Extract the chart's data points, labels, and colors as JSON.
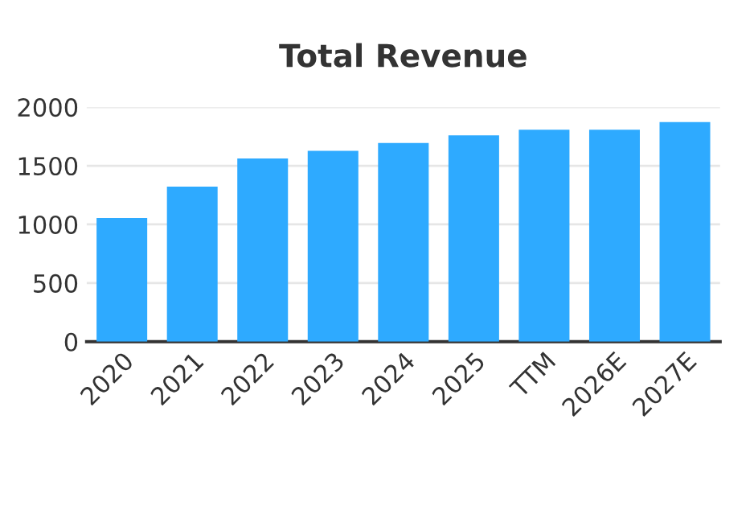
{
  "chart_data": {
    "type": "bar",
    "title": "Total Revenue",
    "categories": [
      "2020",
      "2021",
      "2022",
      "2023",
      "2024",
      "2025",
      "TTM",
      "2026E",
      "2027E"
    ],
    "values": [
      1054,
      1322,
      1562,
      1628,
      1694,
      1760,
      1807,
      1807,
      1873
    ],
    "color": "#2eaaff",
    "ylim": [
      0,
      2000
    ],
    "yticks": [
      0,
      500,
      1000,
      1500,
      2000
    ],
    "grid": "y"
  }
}
